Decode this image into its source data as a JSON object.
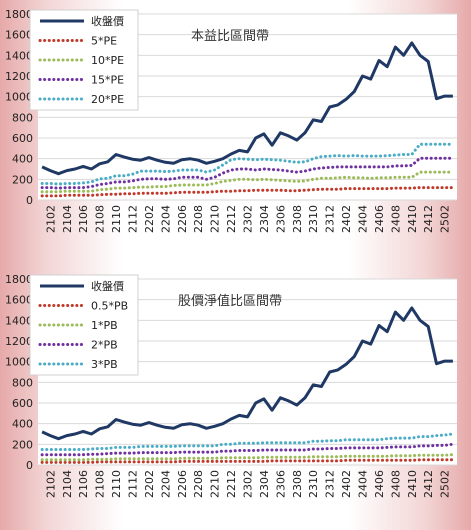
{
  "chart_data": [
    {
      "type": "line",
      "title": "本益比區間帶",
      "ylim": [
        0,
        1800
      ],
      "y_ticks": [
        0,
        200,
        400,
        600,
        800,
        1000,
        1200,
        1400,
        1600,
        1800
      ],
      "x_ticks": [
        "2102",
        "2104",
        "2106",
        "2108",
        "2110",
        "2112",
        "2202",
        "2204",
        "2206",
        "2208",
        "2210",
        "2212",
        "2302",
        "2304",
        "2306",
        "2308",
        "2310",
        "2312",
        "2402",
        "2404",
        "2406",
        "2408",
        "2410",
        "2412",
        "2502"
      ],
      "grid": true,
      "legend_position": "top-left",
      "x": [
        "2101",
        "2102",
        "2103",
        "2104",
        "2105",
        "2106",
        "2107",
        "2108",
        "2109",
        "2110",
        "2111",
        "2112",
        "2201",
        "2202",
        "2203",
        "2204",
        "2205",
        "2206",
        "2207",
        "2208",
        "2209",
        "2210",
        "2211",
        "2212",
        "2301",
        "2302",
        "2303",
        "2304",
        "2305",
        "2306",
        "2307",
        "2308",
        "2309",
        "2310",
        "2311",
        "2312",
        "2401",
        "2402",
        "2403",
        "2404",
        "2405",
        "2406",
        "2407",
        "2408",
        "2409",
        "2410",
        "2411",
        "2412",
        "2501",
        "2502",
        "2503"
      ],
      "series": [
        {
          "name": "收盤價",
          "color": "#1f3864",
          "style": "solid",
          "values": [
            320,
            285,
            255,
            285,
            300,
            325,
            300,
            350,
            370,
            440,
            415,
            395,
            385,
            410,
            385,
            365,
            355,
            390,
            400,
            385,
            355,
            375,
            400,
            445,
            480,
            465,
            600,
            640,
            530,
            650,
            620,
            580,
            650,
            775,
            760,
            900,
            920,
            975,
            1050,
            1200,
            1170,
            1350,
            1290,
            1480,
            1400,
            1520,
            1400,
            1340,
            980,
            1005,
            1005
          ]
        },
        {
          "name": "5*PE",
          "color": "#c0392b",
          "style": "dotted",
          "values": [
            40,
            40,
            40,
            45,
            45,
            45,
            45,
            50,
            55,
            55,
            60,
            60,
            65,
            65,
            65,
            65,
            70,
            75,
            75,
            75,
            75,
            80,
            85,
            85,
            90,
            90,
            95,
            95,
            95,
            95,
            90,
            90,
            95,
            100,
            105,
            105,
            105,
            110,
            110,
            110,
            110,
            110,
            110,
            115,
            115,
            115,
            120,
            120,
            120,
            120,
            120
          ]
        },
        {
          "name": "10*PE",
          "color": "#9bbb59",
          "style": "dotted",
          "values": [
            80,
            80,
            80,
            85,
            85,
            85,
            85,
            100,
            105,
            115,
            115,
            120,
            125,
            125,
            130,
            130,
            140,
            145,
            145,
            145,
            145,
            160,
            180,
            190,
            200,
            200,
            195,
            200,
            195,
            190,
            185,
            180,
            185,
            200,
            210,
            210,
            215,
            220,
            215,
            215,
            210,
            215,
            215,
            220,
            220,
            220,
            270,
            270,
            270,
            270,
            270
          ]
        },
        {
          "name": "15*PE",
          "color": "#7030a0",
          "style": "dotted",
          "values": [
            120,
            120,
            115,
            120,
            120,
            120,
            130,
            150,
            160,
            175,
            175,
            185,
            200,
            205,
            205,
            200,
            205,
            220,
            220,
            220,
            200,
            220,
            260,
            290,
            300,
            300,
            290,
            300,
            295,
            290,
            280,
            270,
            280,
            300,
            310,
            315,
            320,
            320,
            320,
            320,
            320,
            320,
            320,
            330,
            330,
            335,
            405,
            405,
            405,
            405,
            405
          ]
        },
        {
          "name": "20*PE",
          "color": "#4bacc6",
          "style": "dotted",
          "values": [
            160,
            160,
            155,
            160,
            160,
            165,
            175,
            205,
            210,
            235,
            235,
            250,
            280,
            280,
            280,
            275,
            280,
            290,
            290,
            290,
            270,
            290,
            340,
            390,
            400,
            395,
            390,
            395,
            390,
            385,
            375,
            365,
            370,
            400,
            420,
            425,
            430,
            425,
            430,
            425,
            425,
            425,
            430,
            435,
            440,
            440,
            540,
            540,
            540,
            540,
            540
          ]
        }
      ]
    },
    {
      "type": "line",
      "title": "股價淨值比區間帶",
      "ylim": [
        0,
        1800
      ],
      "y_ticks": [
        0,
        200,
        400,
        600,
        800,
        1000,
        1200,
        1400,
        1600,
        1800
      ],
      "x_ticks": [
        "2102",
        "2104",
        "2106",
        "2108",
        "2110",
        "2112",
        "2202",
        "2204",
        "2206",
        "2208",
        "2210",
        "2212",
        "2302",
        "2304",
        "2306",
        "2308",
        "2310",
        "2312",
        "2402",
        "2404",
        "2406",
        "2408",
        "2410",
        "2412",
        "2502"
      ],
      "grid": true,
      "legend_position": "top-left",
      "x": [
        "2101",
        "2102",
        "2103",
        "2104",
        "2105",
        "2106",
        "2107",
        "2108",
        "2109",
        "2110",
        "2111",
        "2112",
        "2201",
        "2202",
        "2203",
        "2204",
        "2205",
        "2206",
        "2207",
        "2208",
        "2209",
        "2210",
        "2211",
        "2212",
        "2301",
        "2302",
        "2303",
        "2304",
        "2305",
        "2306",
        "2307",
        "2308",
        "2309",
        "2310",
        "2311",
        "2312",
        "2401",
        "2402",
        "2403",
        "2404",
        "2405",
        "2406",
        "2407",
        "2408",
        "2409",
        "2410",
        "2411",
        "2412",
        "2501",
        "2502",
        "2503"
      ],
      "series": [
        {
          "name": "收盤價",
          "color": "#1f3864",
          "style": "solid",
          "values": [
            320,
            285,
            255,
            285,
            300,
            325,
            300,
            350,
            370,
            440,
            415,
            395,
            385,
            410,
            385,
            365,
            355,
            390,
            400,
            385,
            355,
            375,
            400,
            445,
            480,
            465,
            600,
            640,
            530,
            650,
            620,
            580,
            650,
            775,
            760,
            900,
            920,
            975,
            1050,
            1200,
            1170,
            1350,
            1290,
            1480,
            1400,
            1520,
            1400,
            1340,
            980,
            1005,
            1005
          ]
        },
        {
          "name": "0.5*PB",
          "color": "#c0392b",
          "style": "dotted",
          "values": [
            25,
            25,
            25,
            25,
            25,
            25,
            25,
            30,
            30,
            30,
            30,
            30,
            30,
            30,
            30,
            30,
            30,
            35,
            35,
            35,
            35,
            35,
            35,
            35,
            35,
            35,
            35,
            35,
            40,
            40,
            40,
            40,
            40,
            40,
            40,
            40,
            40,
            45,
            45,
            45,
            45,
            45,
            45,
            45,
            45,
            45,
            50,
            50,
            50,
            50,
            50
          ]
        },
        {
          "name": "1*PB",
          "color": "#9bbb59",
          "style": "dotted",
          "values": [
            50,
            50,
            50,
            50,
            50,
            50,
            55,
            55,
            55,
            60,
            60,
            60,
            60,
            60,
            60,
            60,
            60,
            65,
            65,
            65,
            65,
            65,
            70,
            70,
            70,
            70,
            70,
            75,
            75,
            75,
            75,
            75,
            75,
            80,
            80,
            80,
            80,
            85,
            85,
            85,
            85,
            85,
            85,
            90,
            90,
            90,
            95,
            95,
            95,
            95,
            100
          ]
        },
        {
          "name": "2*PB",
          "color": "#7030a0",
          "style": "dotted",
          "values": [
            100,
            100,
            100,
            100,
            100,
            100,
            105,
            105,
            110,
            115,
            115,
            115,
            120,
            120,
            120,
            120,
            120,
            125,
            125,
            125,
            125,
            125,
            135,
            135,
            140,
            140,
            140,
            145,
            145,
            145,
            145,
            145,
            145,
            155,
            155,
            160,
            160,
            165,
            165,
            165,
            165,
            165,
            170,
            175,
            175,
            175,
            185,
            185,
            190,
            190,
            200
          ]
        },
        {
          "name": "3*PB",
          "color": "#4bacc6",
          "style": "dotted",
          "values": [
            150,
            150,
            150,
            150,
            150,
            150,
            155,
            160,
            160,
            170,
            170,
            170,
            180,
            180,
            180,
            180,
            180,
            185,
            185,
            185,
            185,
            185,
            200,
            200,
            210,
            210,
            210,
            215,
            215,
            215,
            215,
            215,
            215,
            230,
            230,
            235,
            235,
            245,
            245,
            245,
            245,
            245,
            255,
            260,
            260,
            260,
            275,
            275,
            285,
            290,
            300
          ]
        }
      ]
    }
  ]
}
